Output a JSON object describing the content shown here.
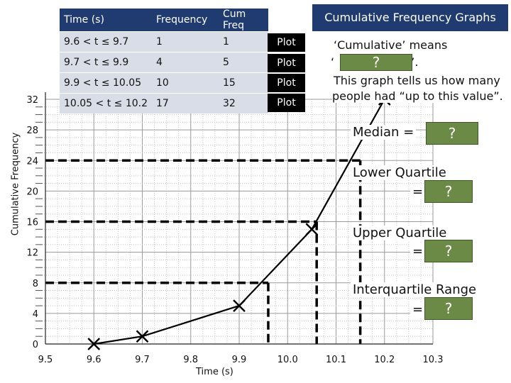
{
  "title": "Cumulative Frequency Graphs",
  "table": {
    "headers": [
      "Time (s)",
      "Frequency",
      "Cum Freq"
    ],
    "rows": [
      {
        "time": "9.6 < t ≤ 9.7",
        "frequency": "1",
        "cum_freq": "1",
        "action": "Plot"
      },
      {
        "time": "9.7 < t ≤ 9.9",
        "frequency": "4",
        "cum_freq": "5",
        "action": "Plot"
      },
      {
        "time": "9.9 < t ≤ 10.05",
        "frequency": "10",
        "cum_freq": "15",
        "action": "Plot"
      },
      {
        "time": "10.05 < t ≤ 10.2",
        "frequency": "17",
        "cum_freq": "32",
        "action": "Plot"
      }
    ]
  },
  "notes": {
    "cumulative_line1": "‘Cumulative’ means",
    "cumulative_line2_start": "‘",
    "cumulative_line2_end": "’.",
    "hidden_answer": "?",
    "graph_line1": "This graph tells us how many",
    "graph_line2": "people had “up to this value”."
  },
  "questions": {
    "median": {
      "label": "Median =",
      "answer": "?"
    },
    "lower_quartile": {
      "line1": "Lower Quartile",
      "line2": "=",
      "answer": "?"
    },
    "upper_quartile": {
      "line1": "Upper Quartile",
      "line2": "=",
      "answer": "?"
    },
    "iqr": {
      "line1": "Interquartile Range",
      "line2": "=",
      "answer": "?"
    }
  },
  "chart_data": {
    "type": "line",
    "xlabel": "Time (s)",
    "ylabel": "Cumulative Frequency",
    "xlim": [
      9.5,
      10.3
    ],
    "ylim": [
      0,
      32
    ],
    "x_ticks": [
      "9.5",
      "9.6",
      "9.7",
      "9.8",
      "9.9",
      "10.0",
      "10.1",
      "10.2",
      "10.3"
    ],
    "y_ticks": [
      "0",
      "4",
      "8",
      "12",
      "16",
      "20",
      "24",
      "28",
      "32"
    ],
    "points": [
      {
        "x": 9.6,
        "y": 0
      },
      {
        "x": 9.7,
        "y": 1
      },
      {
        "x": 9.9,
        "y": 5
      },
      {
        "x": 10.05,
        "y": 15
      },
      {
        "x": 10.2,
        "y": 32
      }
    ],
    "guides": [
      {
        "y": 24,
        "x": 10.15
      },
      {
        "y": 16,
        "x": 10.06
      },
      {
        "y": 8,
        "x": 9.96
      }
    ],
    "grid": true
  }
}
